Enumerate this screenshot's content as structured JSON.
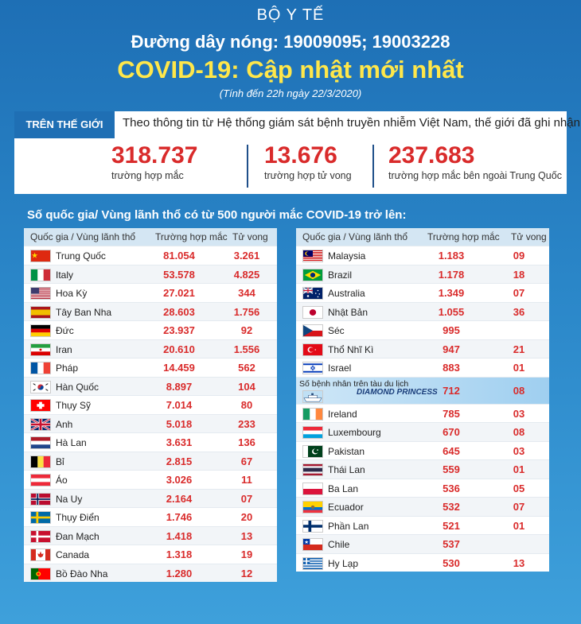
{
  "header": {
    "org": "BỘ Y TẾ",
    "hotline": "Đường dây nóng: 19009095; 19003228",
    "title": "COVID-19: Cập nhật mới nhất",
    "as_of": "(Tính đến 22h ngày 22/3/2020)"
  },
  "world": {
    "tag": "TRÊN THẾ GIỚI",
    "intro": "Theo thông tin từ Hệ thống giám sát bệnh truyền nhiễm Việt Nam, thế giới đã ghi nhận:",
    "stats": [
      {
        "value": "318.737",
        "label": "trường hợp mắc"
      },
      {
        "value": "13.676",
        "label": "trường hợp tử vong"
      },
      {
        "value": "237.683",
        "label": "trường hợp  mắc bên ngoài Trung Quốc"
      }
    ]
  },
  "section_title": "Số quốc gia/ Vùng lãnh thổ có từ 500 người  mắc COVID-19 trở lên:",
  "table_headers": {
    "country": "Quốc gia / Vùng lãnh thổ",
    "cases": "Trường hợp mắc",
    "deaths": "Tử vong"
  },
  "colors": {
    "accent_red": "#d92b2b",
    "title_yellow": "#ffe74a",
    "background_blue": "#1e6fb5"
  },
  "left_rows": [
    {
      "country": "Trung Quốc",
      "cases": "81.054",
      "deaths": "3.261",
      "flag": "china-flag-icon"
    },
    {
      "country": "Italy",
      "cases": "53.578",
      "deaths": "4.825",
      "flag": "italy-flag-icon"
    },
    {
      "country": "Hoa Kỳ",
      "cases": "27.021",
      "deaths": "344",
      "flag": "usa-flag-icon"
    },
    {
      "country": "Tây Ban Nha",
      "cases": "28.603",
      "deaths": "1.756",
      "flag": "spain-flag-icon"
    },
    {
      "country": "Đức",
      "cases": "23.937",
      "deaths": "92",
      "flag": "germany-flag-icon"
    },
    {
      "country": "Iran",
      "cases": "20.610",
      "deaths": "1.556",
      "flag": "iran-flag-icon"
    },
    {
      "country": "Pháp",
      "cases": "14.459",
      "deaths": "562",
      "flag": "france-flag-icon"
    },
    {
      "country": "Hàn Quốc",
      "cases": "8.897",
      "deaths": "104",
      "flag": "korea-flag-icon"
    },
    {
      "country": "Thụy Sỹ",
      "cases": "7.014",
      "deaths": "80",
      "flag": "switzerland-flag-icon"
    },
    {
      "country": "Anh",
      "cases": "5.018",
      "deaths": "233",
      "flag": "uk-flag-icon"
    },
    {
      "country": "Hà Lan",
      "cases": "3.631",
      "deaths": "136",
      "flag": "netherlands-flag-icon"
    },
    {
      "country": "Bỉ",
      "cases": "2.815",
      "deaths": "67",
      "flag": "belgium-flag-icon"
    },
    {
      "country": "Áo",
      "cases": "3.026",
      "deaths": "11",
      "flag": "austria-flag-icon"
    },
    {
      "country": "Na Uy",
      "cases": "2.164",
      "deaths": "07",
      "flag": "norway-flag-icon"
    },
    {
      "country": "Thụy Điển",
      "cases": "1.746",
      "deaths": "20",
      "flag": "sweden-flag-icon"
    },
    {
      "country": "Đan Mạch",
      "cases": "1.418",
      "deaths": "13",
      "flag": "denmark-flag-icon"
    },
    {
      "country": "Canada",
      "cases": "1.318",
      "deaths": "19",
      "flag": "canada-flag-icon"
    },
    {
      "country": "Bồ Đào Nha",
      "cases": "1.280",
      "deaths": "12",
      "flag": "portugal-flag-icon"
    }
  ],
  "right_rows": [
    {
      "country": "Malaysia",
      "cases": "1.183",
      "deaths": "09",
      "flag": "malaysia-flag-icon"
    },
    {
      "country": "Brazil",
      "cases": "1.178",
      "deaths": "18",
      "flag": "brazil-flag-icon"
    },
    {
      "country": "Australia",
      "cases": "1.349",
      "deaths": "07",
      "flag": "australia-flag-icon"
    },
    {
      "country": "Nhật Bản",
      "cases": "1.055",
      "deaths": "36",
      "flag": "japan-flag-icon"
    },
    {
      "country": "Séc",
      "cases": "995",
      "deaths": "",
      "flag": "czech-flag-icon"
    },
    {
      "country": "Thổ Nhĩ Kì",
      "cases": "947",
      "deaths": "21",
      "flag": "turkey-flag-icon"
    },
    {
      "country": "Israel",
      "cases": "883",
      "deaths": "01",
      "flag": "israel-flag-icon"
    },
    {
      "country": "Số bệnh nhân trên tàu du lịch",
      "ship": "DIAMOND PRINCESS",
      "cases": "712",
      "deaths": "08",
      "flag": "cruise-ship-icon"
    },
    {
      "country": "Ireland",
      "cases": "785",
      "deaths": "03",
      "flag": "ireland-flag-icon"
    },
    {
      "country": "Luxembourg",
      "cases": "670",
      "deaths": "08",
      "flag": "luxembourg-flag-icon"
    },
    {
      "country": "Pakistan",
      "cases": "645",
      "deaths": "03",
      "flag": "pakistan-flag-icon"
    },
    {
      "country": "Thái Lan",
      "cases": "559",
      "deaths": "01",
      "flag": "thailand-flag-icon"
    },
    {
      "country": "Ba Lan",
      "cases": "536",
      "deaths": "05",
      "flag": "poland-flag-icon"
    },
    {
      "country": "Ecuador",
      "cases": "532",
      "deaths": "07",
      "flag": "ecuador-flag-icon"
    },
    {
      "country": "Phần Lan",
      "cases": "521",
      "deaths": "01",
      "flag": "finland-flag-icon"
    },
    {
      "country": "Chile",
      "cases": "537",
      "deaths": "",
      "flag": "chile-flag-icon"
    },
    {
      "country": "Hy Lạp",
      "cases": "530",
      "deaths": "13",
      "flag": "greece-flag-icon"
    }
  ]
}
